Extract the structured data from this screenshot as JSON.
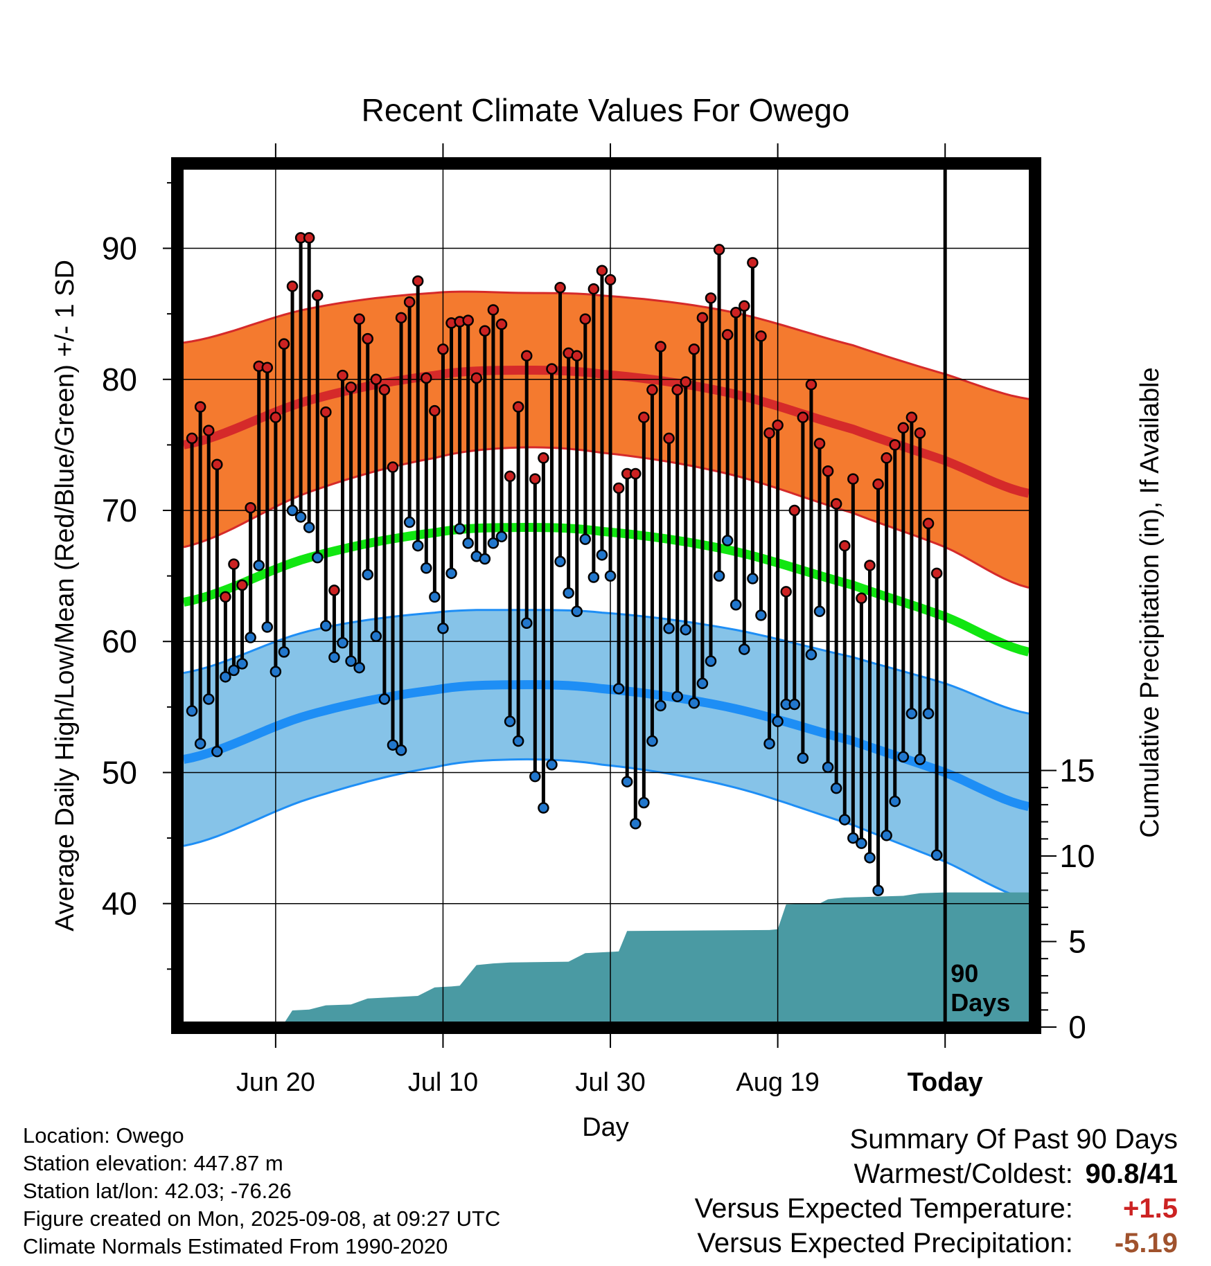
{
  "chart_data": {
    "type": "line",
    "title": "Recent Climate Values For Owego",
    "xlabel": "Day",
    "ylabel": "Average Daily High/Low/Mean (Red/Blue/Green) +/- 1 SD",
    "y2label": "Cumulative Precipitation (in), If Available",
    "x_range": [
      "2025-06-09",
      "2025-09-18"
    ],
    "x_ticks": [
      {
        "label": "Jun 20",
        "date": "2025-06-20"
      },
      {
        "label": "Jul 10",
        "date": "2025-07-10"
      },
      {
        "label": "Jul 30",
        "date": "2025-07-30"
      },
      {
        "label": "Aug 19",
        "date": "2025-08-19"
      },
      {
        "label": "Today",
        "date": "2025-09-08"
      }
    ],
    "ylim": [
      31,
      96
    ],
    "y_ticks": [
      40,
      50,
      60,
      70,
      80,
      90
    ],
    "y2lim": [
      0,
      16
    ],
    "y2_ticks": [
      0,
      5,
      10,
      15
    ],
    "today_label": "90\nDays",
    "colors": {
      "high_band": "#f47a2f",
      "high_line": "#d52a2a",
      "high_edge": "#d52a2a",
      "low_band": "#86c3e8",
      "low_line": "#1e8ef5",
      "low_edge": "#1e8ef5",
      "mean_line": "#11e611",
      "precip": "#4a9aa3",
      "high_dot": "#cc2222",
      "low_dot": "#2277cc"
    },
    "normals": [
      {
        "date": "2025-06-09",
        "high": 75.0,
        "high_sd": 7.8,
        "low": 51.0,
        "low_sd": 6.6,
        "mean": 63.0
      },
      {
        "date": "2025-06-24",
        "high": 78.4,
        "high_sd": 7.0,
        "low": 54.4,
        "low_sd": 6.4,
        "mean": 66.4
      },
      {
        "date": "2025-07-09",
        "high": 80.3,
        "high_sd": 6.3,
        "low": 56.3,
        "low_sd": 5.9,
        "mean": 68.3
      },
      {
        "date": "2025-07-19",
        "high": 80.7,
        "high_sd": 5.9,
        "low": 56.7,
        "low_sd": 5.7,
        "mean": 68.7
      },
      {
        "date": "2025-07-29",
        "high": 80.4,
        "high_sd": 6.0,
        "low": 56.4,
        "low_sd": 5.8,
        "mean": 68.4
      },
      {
        "date": "2025-08-13",
        "high": 79.0,
        "high_sd": 6.2,
        "low": 55.0,
        "low_sd": 6.0,
        "mean": 67.0
      },
      {
        "date": "2025-08-28",
        "high": 76.2,
        "high_sd": 6.4,
        "low": 52.4,
        "low_sd": 6.4,
        "mean": 64.3
      },
      {
        "date": "2025-09-08",
        "high": 73.8,
        "high_sd": 6.6,
        "low": 50.0,
        "low_sd": 6.8,
        "mean": 61.9
      },
      {
        "date": "2025-09-18",
        "high": 71.3,
        "high_sd": 7.2,
        "low": 47.4,
        "low_sd": 7.1,
        "mean": 59.2
      }
    ],
    "daily": [
      {
        "date": "2025-06-10",
        "high": 75.5,
        "low": 54.7
      },
      {
        "date": "2025-06-11",
        "high": 77.9,
        "low": 52.2
      },
      {
        "date": "2025-06-12",
        "high": 76.1,
        "low": 55.6
      },
      {
        "date": "2025-06-13",
        "high": 73.5,
        "low": 51.6
      },
      {
        "date": "2025-06-14",
        "high": 63.4,
        "low": 57.3
      },
      {
        "date": "2025-06-15",
        "high": 65.9,
        "low": 57.8
      },
      {
        "date": "2025-06-16",
        "high": 64.3,
        "low": 58.3
      },
      {
        "date": "2025-06-17",
        "high": 70.2,
        "low": 60.3
      },
      {
        "date": "2025-06-18",
        "high": 81.0,
        "low": 65.8
      },
      {
        "date": "2025-06-19",
        "high": 80.9,
        "low": 61.1
      },
      {
        "date": "2025-06-20",
        "high": 77.1,
        "low": 57.7
      },
      {
        "date": "2025-06-21",
        "high": 82.7,
        "low": 59.2
      },
      {
        "date": "2025-06-22",
        "high": 87.1,
        "low": 70.0
      },
      {
        "date": "2025-06-23",
        "high": 90.8,
        "low": 69.5
      },
      {
        "date": "2025-06-24",
        "high": 90.8,
        "low": 68.7
      },
      {
        "date": "2025-06-25",
        "high": 86.4,
        "low": 66.4
      },
      {
        "date": "2025-06-26",
        "high": 77.5,
        "low": 61.2
      },
      {
        "date": "2025-06-27",
        "high": 63.9,
        "low": 58.8
      },
      {
        "date": "2025-06-28",
        "high": 80.3,
        "low": 59.9
      },
      {
        "date": "2025-06-29",
        "high": 79.4,
        "low": 58.5
      },
      {
        "date": "2025-06-30",
        "high": 84.6,
        "low": 58.0
      },
      {
        "date": "2025-07-01",
        "high": 83.1,
        "low": 65.1
      },
      {
        "date": "2025-07-02",
        "high": 80.0,
        "low": 60.4
      },
      {
        "date": "2025-07-03",
        "high": 79.2,
        "low": 55.6
      },
      {
        "date": "2025-07-04",
        "high": 73.3,
        "low": 52.1
      },
      {
        "date": "2025-07-05",
        "high": 84.7,
        "low": 51.7
      },
      {
        "date": "2025-07-06",
        "high": 85.9,
        "low": 69.1
      },
      {
        "date": "2025-07-07",
        "high": 87.5,
        "low": 67.3
      },
      {
        "date": "2025-07-08",
        "high": 80.1,
        "low": 65.6
      },
      {
        "date": "2025-07-09",
        "high": 77.6,
        "low": 63.4
      },
      {
        "date": "2025-07-10",
        "high": 82.3,
        "low": 61.0
      },
      {
        "date": "2025-07-11",
        "high": 84.3,
        "low": 65.2
      },
      {
        "date": "2025-07-12",
        "high": 84.4,
        "low": 68.6
      },
      {
        "date": "2025-07-13",
        "high": 84.5,
        "low": 67.5
      },
      {
        "date": "2025-07-14",
        "high": 80.1,
        "low": 66.5
      },
      {
        "date": "2025-07-15",
        "high": 83.7,
        "low": 66.3
      },
      {
        "date": "2025-07-16",
        "high": 85.3,
        "low": 67.5
      },
      {
        "date": "2025-07-17",
        "high": 84.2,
        "low": 68.0
      },
      {
        "date": "2025-07-18",
        "high": 72.6,
        "low": 53.9
      },
      {
        "date": "2025-07-19",
        "high": 77.9,
        "low": 52.4
      },
      {
        "date": "2025-07-20",
        "high": 81.8,
        "low": 61.4
      },
      {
        "date": "2025-07-21",
        "high": 72.4,
        "low": 49.7
      },
      {
        "date": "2025-07-22",
        "high": 74.0,
        "low": 47.3
      },
      {
        "date": "2025-07-23",
        "high": 80.8,
        "low": 50.6
      },
      {
        "date": "2025-07-24",
        "high": 87.0,
        "low": 66.1
      },
      {
        "date": "2025-07-25",
        "high": 82.0,
        "low": 63.7
      },
      {
        "date": "2025-07-26",
        "high": 81.8,
        "low": 62.3
      },
      {
        "date": "2025-07-27",
        "high": 84.6,
        "low": 67.8
      },
      {
        "date": "2025-07-28",
        "high": 86.9,
        "low": 64.9
      },
      {
        "date": "2025-07-29",
        "high": 88.3,
        "low": 66.6
      },
      {
        "date": "2025-07-30",
        "high": 87.6,
        "low": 65.0
      },
      {
        "date": "2025-07-31",
        "high": 71.7,
        "low": 56.4
      },
      {
        "date": "2025-08-01",
        "high": 72.8,
        "low": 49.3
      },
      {
        "date": "2025-08-02",
        "high": 72.8,
        "low": 46.1
      },
      {
        "date": "2025-08-03",
        "high": 77.1,
        "low": 47.7
      },
      {
        "date": "2025-08-04",
        "high": 79.2,
        "low": 52.4
      },
      {
        "date": "2025-08-05",
        "high": 82.5,
        "low": 55.1
      },
      {
        "date": "2025-08-06",
        "high": 75.5,
        "low": 61.0
      },
      {
        "date": "2025-08-07",
        "high": 79.2,
        "low": 55.8
      },
      {
        "date": "2025-08-08",
        "high": 79.8,
        "low": 60.9
      },
      {
        "date": "2025-08-09",
        "high": 82.3,
        "low": 55.3
      },
      {
        "date": "2025-08-10",
        "high": 84.7,
        "low": 56.8
      },
      {
        "date": "2025-08-11",
        "high": 86.2,
        "low": 58.5
      },
      {
        "date": "2025-08-12",
        "high": 89.9,
        "low": 65.0
      },
      {
        "date": "2025-08-13",
        "high": 83.4,
        "low": 67.7
      },
      {
        "date": "2025-08-14",
        "high": 85.1,
        "low": 62.8
      },
      {
        "date": "2025-08-15",
        "high": 85.6,
        "low": 59.4
      },
      {
        "date": "2025-08-16",
        "high": 88.9,
        "low": 64.8
      },
      {
        "date": "2025-08-17",
        "high": 83.3,
        "low": 62.0
      },
      {
        "date": "2025-08-18",
        "high": 75.9,
        "low": 52.2
      },
      {
        "date": "2025-08-19",
        "high": 76.5,
        "low": 53.9
      },
      {
        "date": "2025-08-20",
        "high": 63.8,
        "low": 55.2
      },
      {
        "date": "2025-08-21",
        "high": 70.0,
        "low": 55.2
      },
      {
        "date": "2025-08-22",
        "high": 77.1,
        "low": 51.1
      },
      {
        "date": "2025-08-23",
        "high": 79.6,
        "low": 59.0
      },
      {
        "date": "2025-08-24",
        "high": 75.1,
        "low": 62.3
      },
      {
        "date": "2025-08-25",
        "high": 73.0,
        "low": 50.4
      },
      {
        "date": "2025-08-26",
        "high": 70.5,
        "low": 48.8
      },
      {
        "date": "2025-08-27",
        "high": 67.3,
        "low": 46.4
      },
      {
        "date": "2025-08-28",
        "high": 72.4,
        "low": 45.0
      },
      {
        "date": "2025-08-29",
        "high": 63.3,
        "low": 44.6
      },
      {
        "date": "2025-08-30",
        "high": 65.8,
        "low": 43.5
      },
      {
        "date": "2025-08-31",
        "high": 72.0,
        "low": 41.0
      },
      {
        "date": "2025-09-01",
        "high": 74.0,
        "low": 45.2
      },
      {
        "date": "2025-09-02",
        "high": 75.0,
        "low": 47.8
      },
      {
        "date": "2025-09-03",
        "high": 76.3,
        "low": 51.2
      },
      {
        "date": "2025-09-04",
        "high": 77.1,
        "low": 54.5
      },
      {
        "date": "2025-09-05",
        "high": 75.9,
        "low": 51.0
      },
      {
        "date": "2025-09-06",
        "high": 69.0,
        "low": 54.5
      },
      {
        "date": "2025-09-07",
        "high": 65.2,
        "low": 43.7
      }
    ],
    "cumulative_precip": [
      {
        "date": "2025-06-09",
        "value": 0.0
      },
      {
        "date": "2025-06-18",
        "value": 0.0
      },
      {
        "date": "2025-06-19",
        "value": 0.05
      },
      {
        "date": "2025-06-21",
        "value": 0.1
      },
      {
        "date": "2025-06-22",
        "value": 0.85
      },
      {
        "date": "2025-06-24",
        "value": 0.9
      },
      {
        "date": "2025-06-26",
        "value": 1.15
      },
      {
        "date": "2025-06-29",
        "value": 1.2
      },
      {
        "date": "2025-07-01",
        "value": 1.55
      },
      {
        "date": "2025-07-05",
        "value": 1.65
      },
      {
        "date": "2025-07-07",
        "value": 1.7
      },
      {
        "date": "2025-07-09",
        "value": 2.2
      },
      {
        "date": "2025-07-11",
        "value": 2.25
      },
      {
        "date": "2025-07-12",
        "value": 2.3
      },
      {
        "date": "2025-07-14",
        "value": 3.5
      },
      {
        "date": "2025-07-16",
        "value": 3.6
      },
      {
        "date": "2025-07-18",
        "value": 3.65
      },
      {
        "date": "2025-07-25",
        "value": 3.7
      },
      {
        "date": "2025-07-27",
        "value": 4.2
      },
      {
        "date": "2025-07-31",
        "value": 4.3
      },
      {
        "date": "2025-08-01",
        "value": 5.5
      },
      {
        "date": "2025-08-18",
        "value": 5.55
      },
      {
        "date": "2025-08-19",
        "value": 5.6
      },
      {
        "date": "2025-08-20",
        "value": 7.05
      },
      {
        "date": "2025-08-24",
        "value": 7.1
      },
      {
        "date": "2025-08-25",
        "value": 7.35
      },
      {
        "date": "2025-08-27",
        "value": 7.45
      },
      {
        "date": "2025-09-03",
        "value": 7.55
      },
      {
        "date": "2025-09-05",
        "value": 7.7
      },
      {
        "date": "2025-09-08",
        "value": 7.75
      },
      {
        "date": "2025-09-18",
        "value": 7.75
      }
    ]
  },
  "footer": {
    "location": "Location: Owego",
    "elevation": "Station elevation: 447.87 m",
    "latlon": "Station lat/lon: 42.03; -76.26",
    "created": "Figure created on Mon, 2025-09-08, at 09:27 UTC",
    "normals": "Climate Normals Estimated From 1990-2020"
  },
  "summary": {
    "title": "Summary Of Past 90 Days",
    "warmest_label": "Warmest/Coldest:",
    "warmest_value": "90.8/41",
    "temp_label": "Versus Expected Temperature:",
    "temp_value": "+1.5",
    "temp_color": "#cc2222",
    "precip_label": "Versus Expected Precipitation:",
    "precip_value": "-5.19",
    "precip_color": "#a0522d"
  }
}
